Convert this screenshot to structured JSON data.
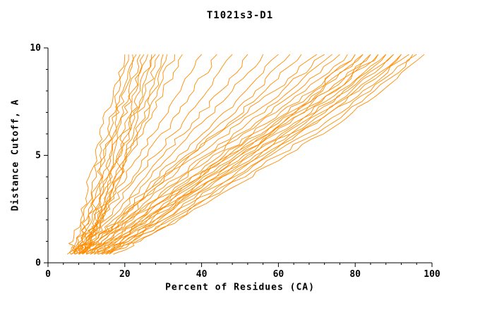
{
  "title": "T1021s3-D1",
  "colors": {
    "line": "#ff8c00",
    "axis": "#000000",
    "background": "#ffffff"
  },
  "chart_data": {
    "type": "line",
    "title": "T1021s3-D1",
    "xlabel": "Percent of Residues (CA)",
    "ylabel": "Distance Cutoff, A",
    "xlim": [
      0,
      100
    ],
    "ylim": [
      0,
      10
    ],
    "x_ticks": [
      0,
      20,
      40,
      60,
      80,
      100
    ],
    "y_ticks": [
      0,
      5,
      10
    ],
    "x_minor_step": 4,
    "y_minor_step": 1,
    "grid": false,
    "legend": "none",
    "line_color": "#ff8c00",
    "y_levels": [
      0.4,
      1,
      2,
      3.5,
      5,
      6.5,
      8,
      9.7
    ],
    "series": [
      {
        "x": [
          5,
          6.5,
          8.5,
          10.5,
          12.5,
          14.5,
          17,
          20
        ]
      },
      {
        "x": [
          6,
          7.5,
          9.5,
          11.5,
          13.5,
          16,
          18.5,
          21
        ]
      },
      {
        "x": [
          6,
          8,
          10,
          12.5,
          14.5,
          17,
          19.5,
          22
        ]
      },
      {
        "x": [
          7,
          8.5,
          10.5,
          13,
          15,
          17.5,
          20,
          23
        ]
      },
      {
        "x": [
          7,
          9,
          11,
          13.5,
          16,
          18.5,
          21,
          24
        ]
      },
      {
        "x": [
          7,
          9,
          11.5,
          14,
          16.5,
          19,
          22,
          25
        ]
      },
      {
        "x": [
          8,
          9.5,
          12,
          14.5,
          17,
          20,
          23,
          26
        ]
      },
      {
        "x": [
          8,
          10,
          12.5,
          15,
          18,
          21,
          24,
          27
        ]
      },
      {
        "x": [
          8,
          10,
          13,
          15.5,
          18.5,
          21.5,
          24.5,
          28
        ]
      },
      {
        "x": [
          9,
          11,
          13.5,
          16,
          19,
          22,
          25.5,
          29
        ]
      },
      {
        "x": [
          9,
          11,
          14,
          17,
          20,
          23,
          26.5,
          30
        ]
      },
      {
        "x": [
          9,
          11.5,
          14.5,
          17.5,
          20.5,
          24,
          27.5,
          31
        ]
      },
      {
        "x": [
          8,
          10.5,
          13.5,
          17,
          20.5,
          24.5,
          28.5,
          33
        ]
      },
      {
        "x": [
          7,
          10,
          13,
          17,
          21,
          25.5,
          30,
          35
        ]
      },
      {
        "x": [
          6,
          9,
          13,
          18,
          24,
          29,
          34.5,
          40
        ]
      },
      {
        "x": [
          7,
          10,
          14,
          20,
          26,
          32,
          38,
          44
        ]
      },
      {
        "x": [
          7,
          10,
          15,
          21,
          28,
          35,
          41.5,
          48
        ]
      },
      {
        "x": [
          8,
          11,
          16,
          23,
          30,
          37.5,
          45,
          52
        ]
      },
      {
        "x": [
          8,
          12,
          17,
          24,
          32,
          40,
          48,
          56
        ]
      },
      {
        "x": [
          9,
          12,
          18,
          26,
          34,
          43,
          51.5,
          60
        ]
      },
      {
        "x": [
          9,
          13,
          19,
          27,
          36,
          45,
          54,
          63
        ]
      },
      {
        "x": [
          10,
          13,
          20,
          28,
          37,
          47,
          56.5,
          66
        ]
      },
      {
        "x": [
          8,
          12,
          18,
          27,
          37,
          48,
          59,
          70
        ]
      },
      {
        "x": [
          9,
          13,
          19,
          28,
          39,
          50,
          61,
          72
        ]
      },
      {
        "x": [
          9,
          13,
          20,
          30,
          41,
          52,
          63,
          74
        ]
      },
      {
        "x": [
          10,
          14,
          21,
          31,
          42,
          54,
          65,
          76
        ]
      },
      {
        "x": [
          10,
          14,
          21,
          32,
          43,
          55,
          67,
          78
        ]
      },
      {
        "x": [
          10,
          15,
          22,
          33,
          45,
          57,
          69,
          80
        ]
      },
      {
        "x": [
          11,
          15,
          23,
          34,
          46,
          58,
          69.5,
          80
        ]
      },
      {
        "x": [
          11,
          16,
          23,
          35,
          47,
          59,
          71,
          82
        ]
      },
      {
        "x": [
          11,
          16,
          24,
          35,
          47,
          60,
          71.5,
          82
        ]
      },
      {
        "x": [
          12,
          17,
          25,
          36,
          48,
          61,
          73,
          84
        ]
      },
      {
        "x": [
          12,
          17,
          25,
          37,
          49,
          61,
          73,
          84
        ]
      },
      {
        "x": [
          12,
          18,
          26,
          38,
          50,
          62,
          74.5,
          86
        ]
      },
      {
        "x": [
          13,
          18,
          26,
          38,
          50,
          63,
          75,
          86
        ]
      },
      {
        "x": [
          13,
          19,
          27,
          39,
          51,
          64,
          76,
          88
        ]
      },
      {
        "x": [
          13,
          19,
          28,
          40,
          52,
          65,
          77,
          88
        ]
      },
      {
        "x": [
          14,
          20,
          28,
          40,
          53,
          66,
          78,
          90
        ]
      },
      {
        "x": [
          14,
          20,
          29,
          41,
          54,
          67,
          79,
          90
        ]
      },
      {
        "x": [
          14,
          21,
          30,
          42,
          55,
          68,
          80,
          92
        ]
      },
      {
        "x": [
          15,
          21,
          30,
          43,
          56,
          69,
          81,
          92
        ]
      },
      {
        "x": [
          15,
          22,
          31,
          44,
          57,
          70,
          82,
          94
        ]
      },
      {
        "x": [
          16,
          22,
          32,
          45,
          58,
          72,
          84,
          95
        ]
      },
      {
        "x": [
          16,
          23,
          33,
          46,
          60,
          74,
          85,
          96
        ]
      },
      {
        "x": [
          17,
          24,
          34,
          48,
          62,
          76,
          87,
          98
        ]
      }
    ]
  }
}
